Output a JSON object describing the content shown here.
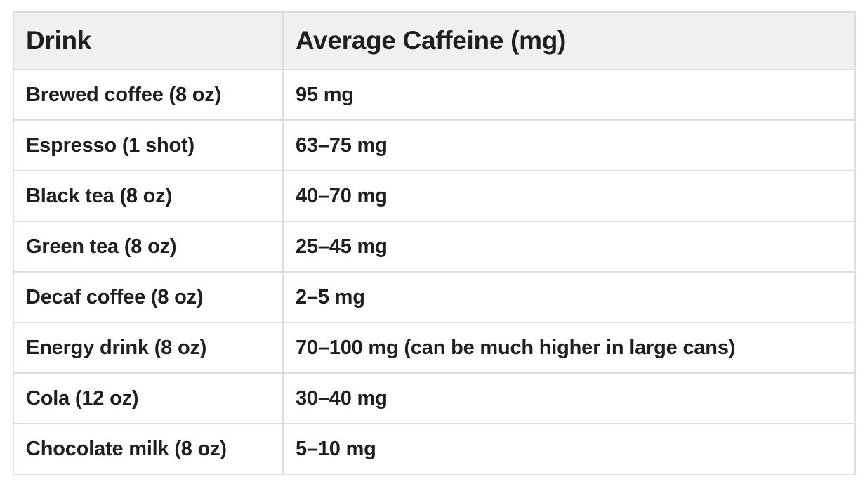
{
  "table": {
    "headers": [
      "Drink",
      "Average Caffeine (mg)"
    ],
    "rows": [
      [
        "Brewed coffee (8 oz)",
        "95 mg"
      ],
      [
        "Espresso (1 shot)",
        "63–75 mg"
      ],
      [
        "Black tea (8 oz)",
        "40–70 mg"
      ],
      [
        "Green tea (8 oz)",
        "25–45 mg"
      ],
      [
        "Decaf coffee (8 oz)",
        "2–5 mg"
      ],
      [
        "Energy drink (8 oz)",
        "70–100 mg (can be much higher in large cans)"
      ],
      [
        "Cola (12 oz)",
        "30–40 mg"
      ],
      [
        "Chocolate milk (8 oz)",
        "5–10 mg"
      ]
    ]
  }
}
